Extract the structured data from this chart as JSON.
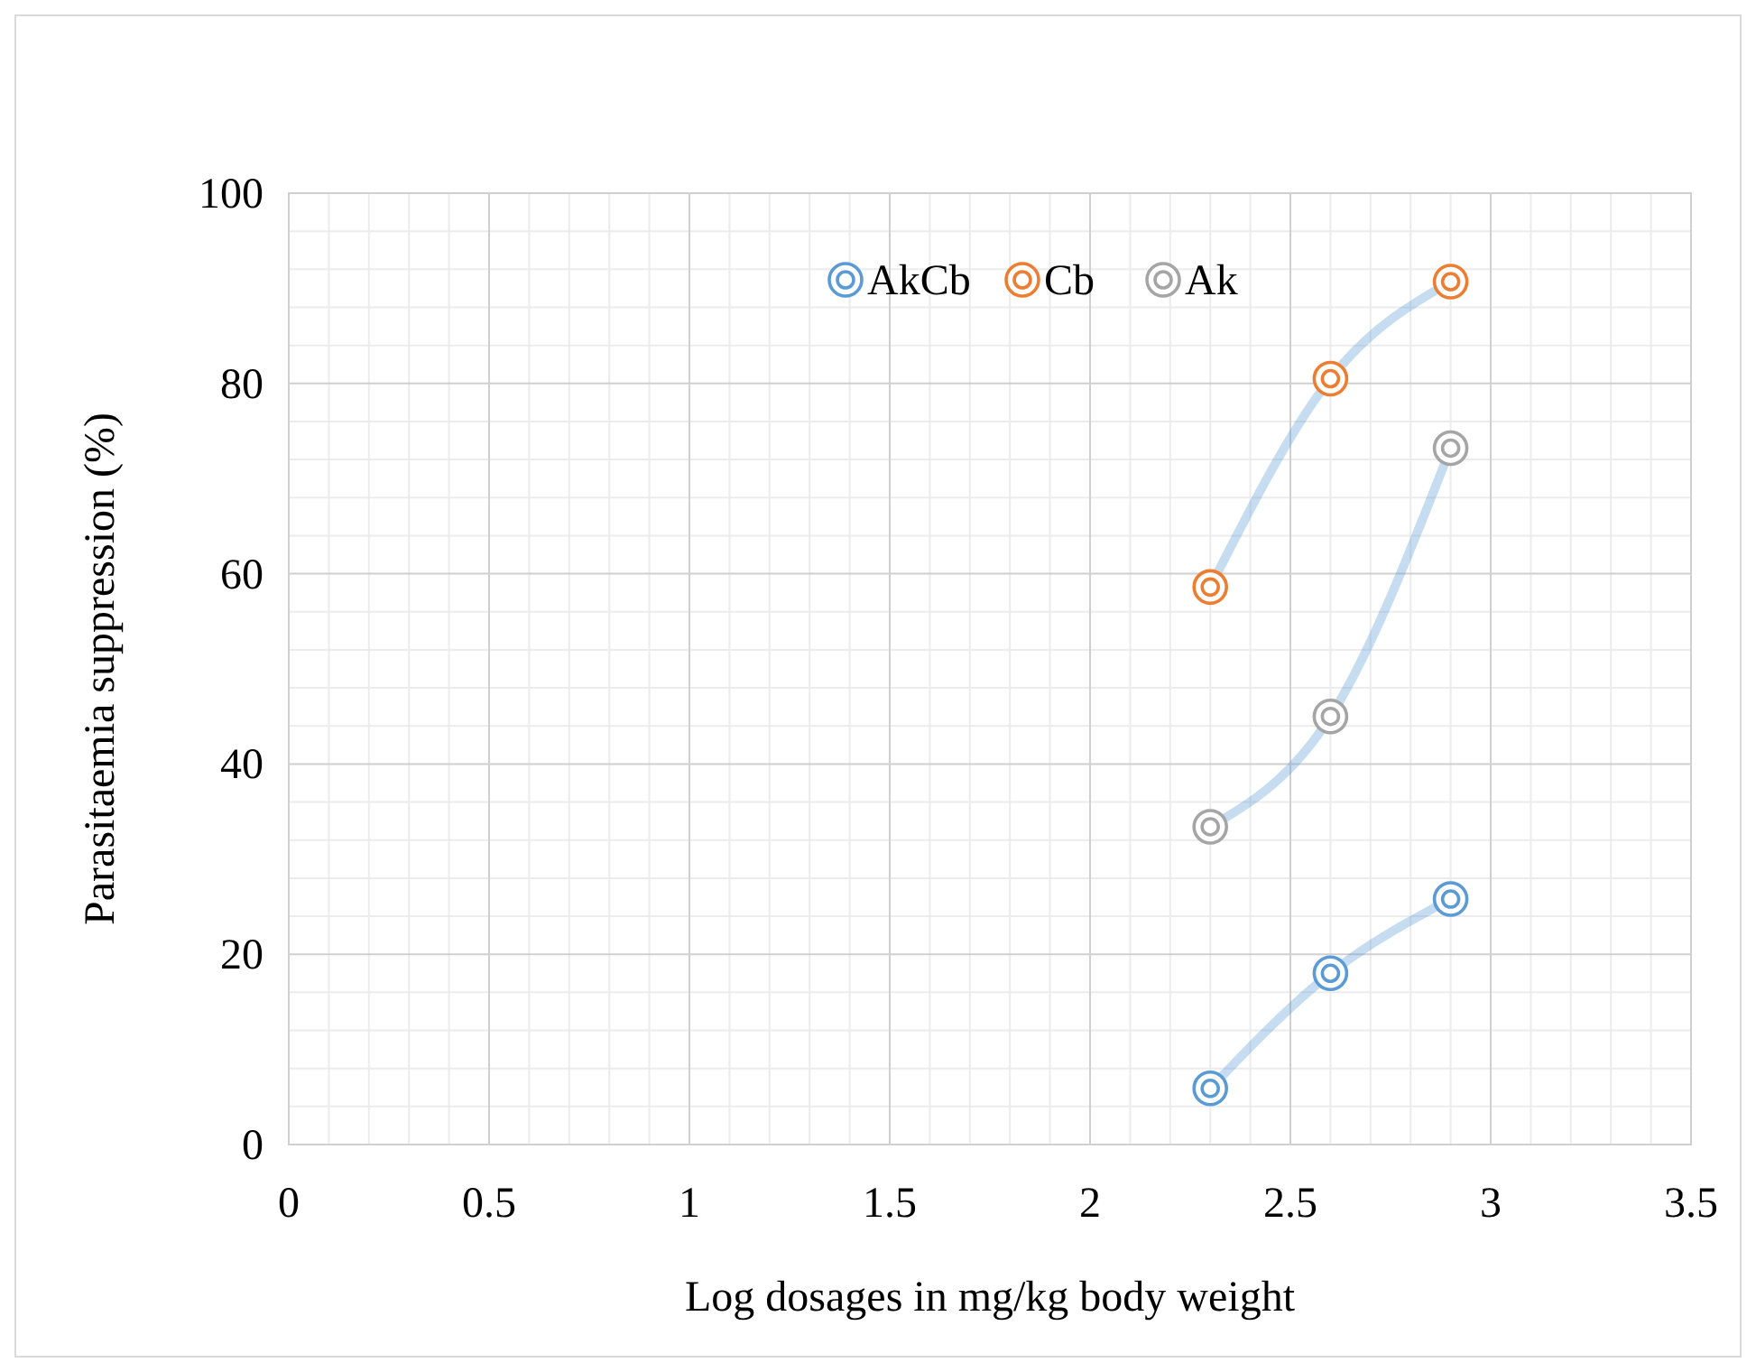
{
  "chart_data": {
    "type": "line",
    "xlabel": "Log dosages in  mg/kg body weight",
    "ylabel": "Parasitaemia suppression (%)",
    "x": [
      2.3,
      2.6,
      2.9
    ],
    "series": [
      {
        "name": "AkCb",
        "color": "#5b9bd5",
        "values": [
          5.9,
          18.0,
          25.8
        ]
      },
      {
        "name": "Cb",
        "color": "#ed7d31",
        "values": [
          58.6,
          80.5,
          90.7
        ]
      },
      {
        "name": "Ak",
        "color": "#a5a5a5",
        "values": [
          33.4,
          45.0,
          73.2
        ]
      }
    ],
    "xlim": [
      0,
      3.5
    ],
    "xticks": [
      0,
      0.5,
      1,
      1.5,
      2,
      2.5,
      3,
      3.5
    ],
    "ylim": [
      0,
      100
    ],
    "yticks": [
      0,
      20,
      40,
      60,
      80,
      100
    ],
    "grid": true,
    "legend": "top",
    "marker": "circle",
    "line_style": "solid"
  }
}
